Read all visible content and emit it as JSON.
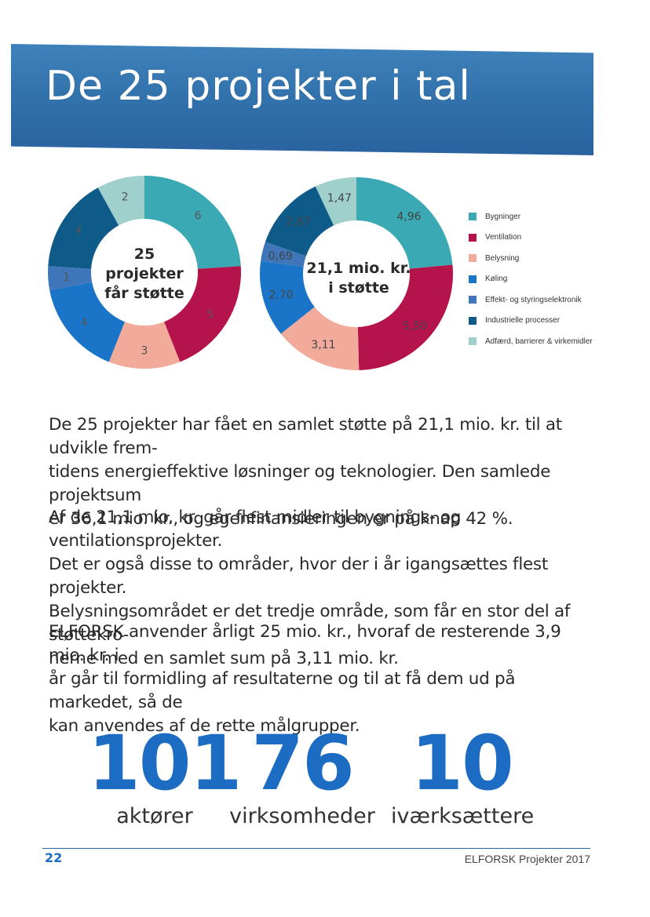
{
  "header": {
    "title": "De 25 projekter i tal"
  },
  "colors": {
    "banner": "#2f6ea8",
    "accent": "#1b6cc2",
    "categories": [
      "#3aa9b3",
      "#b5134b",
      "#f2ab9a",
      "#1a74c8",
      "#3f76b9",
      "#0e5b8a",
      "#9fd0cc"
    ]
  },
  "chart_data": [
    {
      "type": "pie",
      "variant": "donut",
      "center_label": [
        "25",
        "projekter",
        "får støtte"
      ],
      "categories": [
        "Bygninger",
        "Ventilation",
        "Belysning",
        "Køling",
        "Effekt- og styringselektronik",
        "Industrielle processer",
        "Adfærd, barrierer & virkemidler"
      ],
      "values": [
        6,
        5,
        3,
        4,
        1,
        4,
        2
      ],
      "labels": [
        "6",
        "5",
        "3",
        "4",
        "1",
        "4",
        "2"
      ]
    },
    {
      "type": "pie",
      "variant": "donut",
      "center_label": [
        "21,1 mio. kr.",
        "i støtte"
      ],
      "categories": [
        "Bygninger",
        "Ventilation",
        "Belysning",
        "Køling",
        "Effekt- og styringselektronik",
        "Industrielle processer",
        "Adfærd, barrierer & virkemidler"
      ],
      "values": [
        4.96,
        5.5,
        3.11,
        2.7,
        0.69,
        2.67,
        1.47
      ],
      "labels": [
        "4,96",
        "5,50",
        "3,11",
        "2,70",
        "0,69",
        "2,67",
        "1,47"
      ]
    }
  ],
  "legend": {
    "items": [
      "Bygninger",
      "Ventilation",
      "Belysning",
      "Køling",
      "Effekt- og styringselektronik",
      "Industrielle processer",
      "Adfærd, barrierer & virkemidler"
    ]
  },
  "body": {
    "p1": [
      "De 25 projekter har fået en samlet støtte på 21,1 mio. kr. til at udvikle frem-",
      "tidens energieffektive løsninger og teknologier. Den samlede projektsum",
      "er 36,1 mio. kr., og egenfinansieringen er på knap 42 %."
    ],
    "p2": [
      "Af de 21,1 mio. kr. går flest midler til bygnings- og ventilationsprojekter.",
      "Det er også disse to områder, hvor der i år igangsættes flest projekter.",
      "Belysningsområdet er det tredje område, som får en stor del af støttekro-",
      "nerne med en samlet sum på 3,11 mio. kr."
    ],
    "p3": [
      "ELFORSK anvender årligt 25 mio. kr., hvoraf de resterende 3,9 mio. kr. i",
      "år går til formidling af resultaterne og til at få dem ud på markedet, så de",
      "kan anvendes af de rette målgrupper."
    ]
  },
  "stats": [
    {
      "value": "101",
      "label": "aktører"
    },
    {
      "value": "76",
      "label": "virksomheder"
    },
    {
      "value": "10",
      "label": "iværksættere"
    }
  ],
  "footer": {
    "page": "22",
    "title": "ELFORSK Projekter 2017"
  }
}
